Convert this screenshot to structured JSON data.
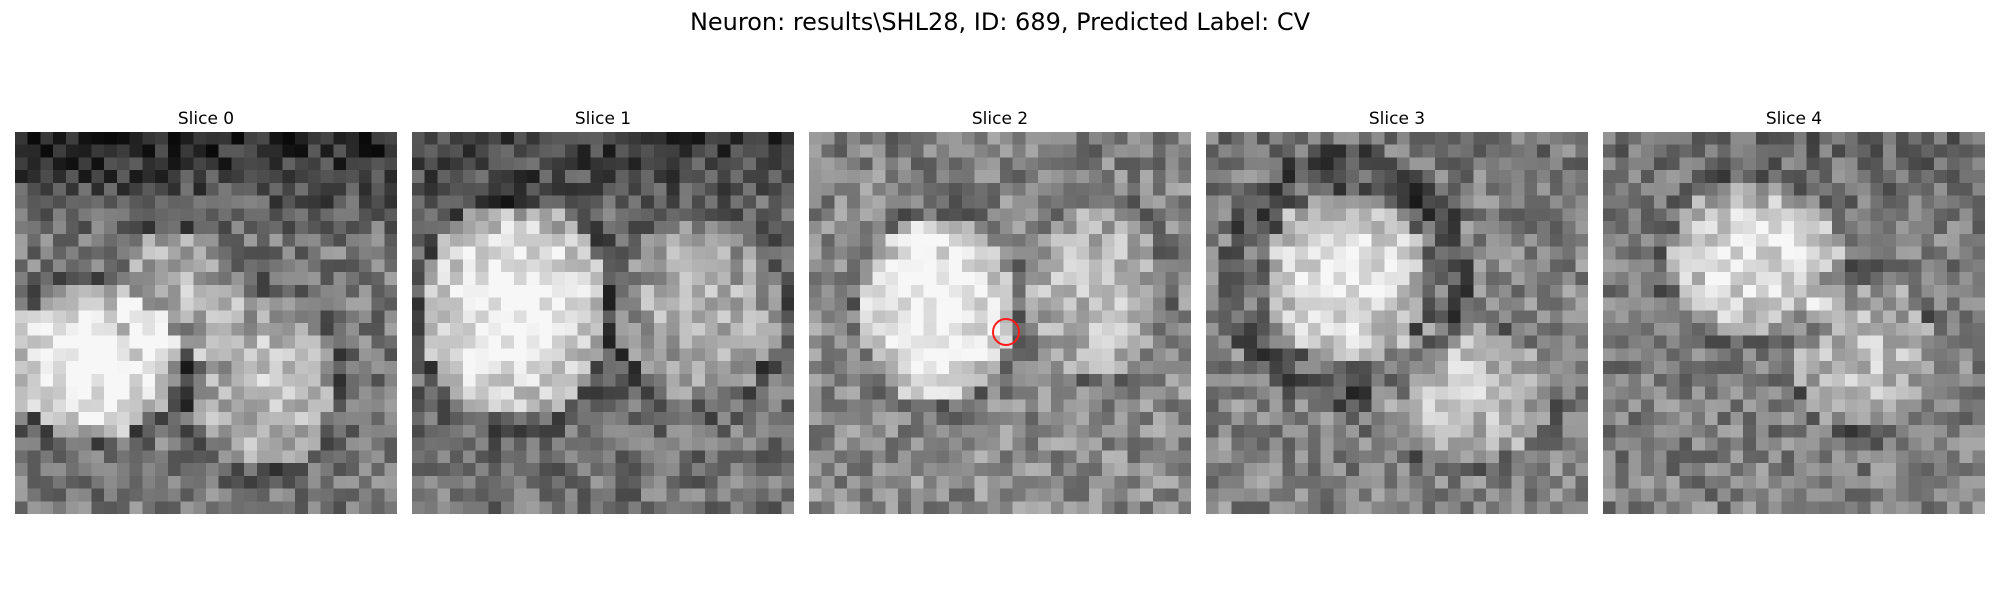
{
  "figure": {
    "title": "Neuron: results\\SHL28, ID: 689, Predicted Label: CV"
  },
  "slices": [
    {
      "title": "Slice 0"
    },
    {
      "title": "Slice 1"
    },
    {
      "title": "Slice 2"
    },
    {
      "title": "Slice 3"
    },
    {
      "title": "Slice 4"
    }
  ],
  "marker": {
    "color": "#ff1a1a",
    "slice_index": 2
  },
  "colormap": "gray"
}
